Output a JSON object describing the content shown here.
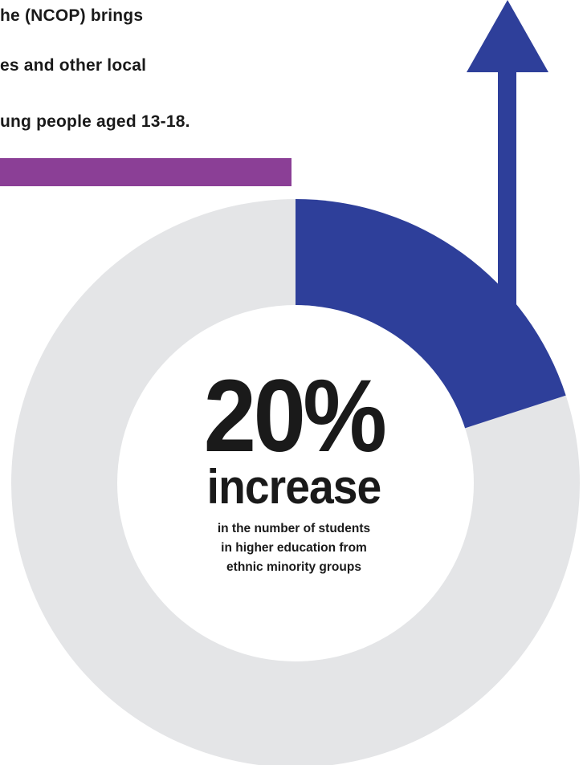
{
  "intro": {
    "lines": [
      "he (NCOP) brings",
      "es and other local",
      "ung people aged 13-18."
    ]
  },
  "stat": {
    "value": "20%",
    "word": "increase",
    "caption": [
      "in the number of students",
      "in higher education from",
      "ethnic minority groups"
    ],
    "share_highlighted": 0.2
  },
  "colors": {
    "accent_bar": "#8b3f96",
    "highlight": "#2e3f9a",
    "ring_background": "#e4e5e7",
    "text": "#1a1a1a"
  },
  "icons": {
    "arrow": "arrow-up-icon"
  }
}
